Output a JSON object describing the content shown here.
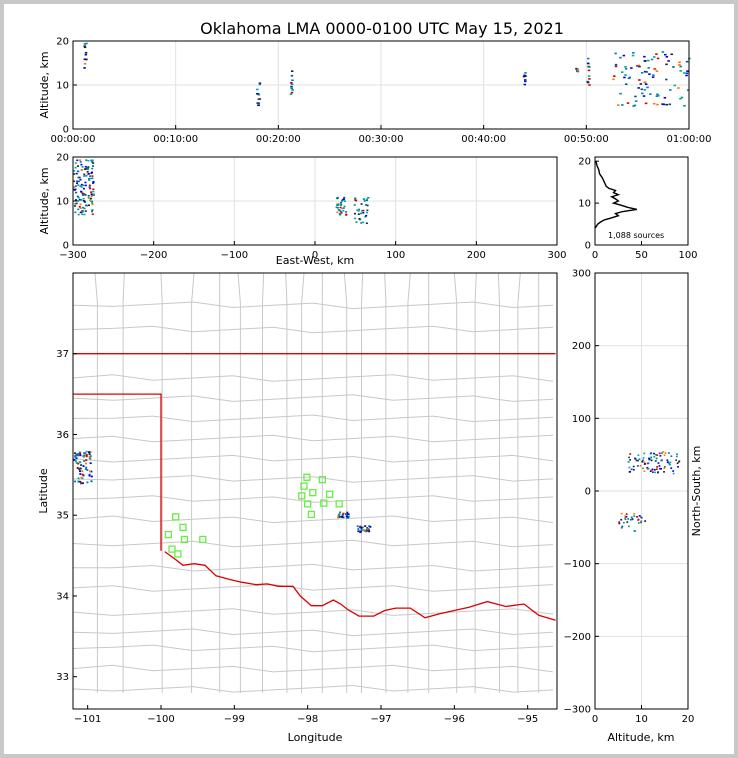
{
  "title": "Oklahoma LMA 0000-0100 UTC May 15, 2021",
  "chart_data": [
    {
      "id": "time_height",
      "type": "scatter",
      "xlabel": "",
      "ylabel": "Altitude, km",
      "x_ticks": [
        "00:00:00",
        "00:10:00",
        "00:20:00",
        "00:30:00",
        "00:40:00",
        "00:50:00",
        "01:00:00"
      ],
      "x_range_minutes": [
        0,
        60
      ],
      "ylim": [
        0,
        20
      ],
      "y_ticks": [
        0,
        10,
        20
      ],
      "grid": true,
      "clusters": [
        {
          "t_min": 1.0,
          "t_max": 1.2,
          "alt_min": 14,
          "alt_max": 20
        },
        {
          "t_min": 17.8,
          "t_max": 18.1,
          "alt_min": 5,
          "alt_max": 11
        },
        {
          "t_min": 21.1,
          "t_max": 21.3,
          "alt_min": 8,
          "alt_max": 14
        },
        {
          "t_min": 43.8,
          "t_max": 44.0,
          "alt_min": 10,
          "alt_max": 13
        },
        {
          "t_min": 48.9,
          "t_max": 49.1,
          "alt_min": 13,
          "alt_max": 14
        },
        {
          "t_min": 50.0,
          "t_max": 50.2,
          "alt_min": 10,
          "alt_max": 17
        },
        {
          "t_min": 52.5,
          "t_max": 60.0,
          "alt_min": 5,
          "alt_max": 18
        }
      ]
    },
    {
      "id": "ew_altitude",
      "type": "scatter",
      "xlabel": "East-West, km",
      "ylabel": "Altitude, km",
      "xlim": [
        -300,
        300
      ],
      "x_ticks": [
        -300,
        -200,
        -100,
        0,
        100,
        200,
        300
      ],
      "ylim": [
        0,
        20
      ],
      "y_ticks": [
        0,
        10,
        20
      ],
      "grid": true,
      "clusters": [
        {
          "x_min": -300,
          "x_max": -275,
          "alt_min": 7,
          "alt_max": 20
        },
        {
          "x_min": 25,
          "x_max": 38,
          "alt_min": 7,
          "alt_max": 11
        },
        {
          "x_min": 48,
          "x_max": 65,
          "alt_min": 5,
          "alt_max": 11
        }
      ]
    },
    {
      "id": "altitude_histogram",
      "type": "line",
      "xlim": [
        0,
        100
      ],
      "x_ticks": [
        0,
        50,
        100
      ],
      "ylim": [
        0,
        21
      ],
      "y_ticks": [
        0,
        10,
        20
      ],
      "annotation": "1,088 sources",
      "profile": [
        [
          0,
          4
        ],
        [
          3,
          5
        ],
        [
          6,
          5.5
        ],
        [
          10,
          6
        ],
        [
          18,
          6.5
        ],
        [
          25,
          7
        ],
        [
          22,
          7.5
        ],
        [
          30,
          8
        ],
        [
          45,
          8.5
        ],
        [
          35,
          9
        ],
        [
          28,
          9.5
        ],
        [
          20,
          10
        ],
        [
          25,
          10.5
        ],
        [
          22,
          11
        ],
        [
          18,
          11.5
        ],
        [
          25,
          12
        ],
        [
          20,
          12.5
        ],
        [
          22,
          13
        ],
        [
          15,
          13.5
        ],
        [
          12,
          14
        ],
        [
          10,
          15
        ],
        [
          8,
          16
        ],
        [
          5,
          17
        ],
        [
          4,
          18
        ],
        [
          2,
          19
        ],
        [
          1,
          20
        ]
      ]
    },
    {
      "id": "plan_view",
      "type": "scatter",
      "xlabel": "Longitude",
      "ylabel": "Latitude",
      "xlim": [
        -101.2,
        -94.6
      ],
      "ylim": [
        32.6,
        38.0
      ],
      "x_ticks": [
        -101,
        -100,
        -99,
        -98,
        -97,
        -96,
        -95
      ],
      "y_ticks": [
        33,
        34,
        35,
        36,
        37
      ],
      "source_clusters": [
        {
          "lon_min": -101.2,
          "lon_max": -100.95,
          "lat_min": 35.4,
          "lat_max": 35.8
        },
        {
          "lon_min": -97.6,
          "lon_max": -97.45,
          "lat_min": 34.98,
          "lat_max": 35.05
        },
        {
          "lon_min": -97.35,
          "lon_max": -97.15,
          "lat_min": 34.8,
          "lat_max": 34.88
        }
      ],
      "stations": [
        {
          "lon": -99.8,
          "lat": 34.98
        },
        {
          "lon": -99.7,
          "lat": 34.85
        },
        {
          "lon": -99.9,
          "lat": 34.76
        },
        {
          "lon": -99.68,
          "lat": 34.7
        },
        {
          "lon": -99.85,
          "lat": 34.58
        },
        {
          "lon": -99.77,
          "lat": 34.52
        },
        {
          "lon": -99.43,
          "lat": 34.7
        },
        {
          "lon": -98.01,
          "lat": 35.47
        },
        {
          "lon": -98.05,
          "lat": 35.36
        },
        {
          "lon": -98.08,
          "lat": 35.24
        },
        {
          "lon": -97.93,
          "lat": 35.28
        },
        {
          "lon": -98.0,
          "lat": 35.14
        },
        {
          "lon": -97.95,
          "lat": 35.01
        },
        {
          "lon": -97.8,
          "lat": 35.44
        },
        {
          "lon": -97.78,
          "lat": 35.15
        },
        {
          "lon": -97.7,
          "lat": 35.26
        },
        {
          "lon": -97.57,
          "lat": 35.14
        }
      ]
    },
    {
      "id": "altitude_ns",
      "type": "scatter",
      "xlabel": "Altitude, km",
      "ylabel": "North-South, km",
      "xlim": [
        0,
        20
      ],
      "x_ticks": [
        0,
        10,
        20
      ],
      "ylim": [
        -300,
        300
      ],
      "y_ticks": [
        -300,
        -200,
        -100,
        0,
        100,
        200,
        300
      ],
      "grid": true,
      "clusters": [
        {
          "alt_min": 7,
          "alt_max": 18,
          "ns_min": 25,
          "ns_max": 55
        },
        {
          "alt_min": 5,
          "alt_max": 11,
          "ns_min": -55,
          "ns_max": -30
        }
      ]
    }
  ]
}
